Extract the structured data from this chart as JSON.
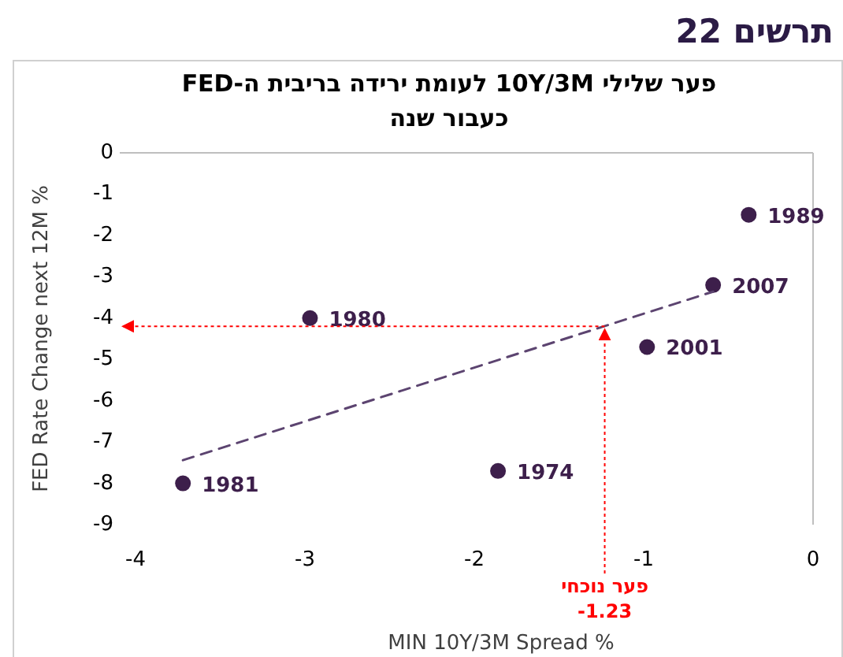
{
  "chart_data": {
    "type": "scatter",
    "title": "תרשים 22",
    "subtitle": "פער שלילי 10Y/3M לעומת ירידה בריבית ה-FED כעבור שנה",
    "xlabel": "MIN 10Y/3M Spread %",
    "ylabel": "FED Rate Change next 12M %",
    "xlim": [
      -4,
      0
    ],
    "xticks": [
      -4,
      -3,
      -2,
      -1,
      0
    ],
    "ylim": [
      -9,
      0
    ],
    "yticks": [
      0,
      -1,
      -2,
      -3,
      -4,
      -5,
      -6,
      -7,
      -8,
      -9
    ],
    "grid": false,
    "series": [
      {
        "type": "scatter",
        "marker": "circle",
        "color": "#3d1f4b",
        "x": [
          -3.72,
          -2.97,
          -1.86,
          -0.98,
          -0.59,
          -0.38
        ],
        "values": [
          -8.0,
          -4.0,
          -7.7,
          -4.7,
          -3.2,
          -1.5
        ]
      },
      {
        "type": "line",
        "color": "#5c4470",
        "line_style": "dashed",
        "x": [
          -3.72,
          -0.59
        ],
        "values": [
          -7.44,
          -3.36
        ]
      }
    ],
    "annotations": [
      {
        "text": "1981",
        "x": -3.72,
        "y": -8.0
      },
      {
        "text": "1980",
        "x": -2.97,
        "y": -4.0
      },
      {
        "text": "1974",
        "x": -1.86,
        "y": -7.7
      },
      {
        "text": "2001",
        "x": -0.98,
        "y": -4.7
      },
      {
        "text": "2007",
        "x": -0.59,
        "y": -3.2
      },
      {
        "text": "1989",
        "x": -0.38,
        "y": -1.5
      },
      {
        "text": "פער נוכחי\n-1.23",
        "x": -1.23,
        "y": -4.2
      }
    ]
  }
}
